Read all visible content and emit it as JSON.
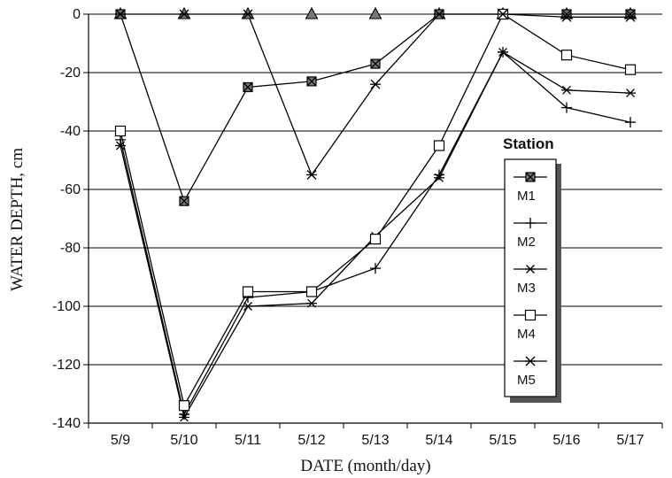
{
  "chart_data": {
    "type": "line",
    "xlabel": "DATE (month/day)",
    "ylabel": "WATER DEPTH, cm",
    "categories": [
      "5/9",
      "5/10",
      "5/11",
      "5/12",
      "5/13",
      "5/14",
      "5/15",
      "5/16",
      "5/17"
    ],
    "ylim": [
      -140,
      0
    ],
    "yticks": [
      0,
      -20,
      -40,
      -60,
      -80,
      -100,
      -120,
      -140
    ],
    "grid": "horizontal",
    "legend": {
      "title": "Station",
      "position": "right"
    },
    "series": [
      {
        "name": "M1",
        "marker": "square-filled",
        "values": [
          0,
          -64,
          -25,
          -23,
          -17,
          0,
          0,
          0,
          0
        ]
      },
      {
        "name": "M2",
        "marker": "plus",
        "values": [
          -43,
          -137,
          -97,
          -95,
          -87,
          -55,
          -13,
          -32,
          -37
        ]
      },
      {
        "name": "M3",
        "marker": "star",
        "values": [
          -45,
          -138,
          -100,
          -99,
          -76,
          -56,
          -13,
          -26,
          -27
        ]
      },
      {
        "name": "M4",
        "marker": "square-open",
        "values": [
          -40,
          -134,
          -95,
          -95,
          -77,
          -45,
          0,
          -14,
          -19
        ]
      },
      {
        "name": "M5",
        "marker": "x-line",
        "values": [
          0,
          0,
          0,
          -55,
          -24,
          0,
          0,
          -1,
          -1
        ]
      }
    ],
    "reference_markers": {
      "marker": "triangle",
      "values": [
        0,
        0,
        0,
        0,
        0,
        0,
        0,
        0,
        0
      ]
    }
  }
}
